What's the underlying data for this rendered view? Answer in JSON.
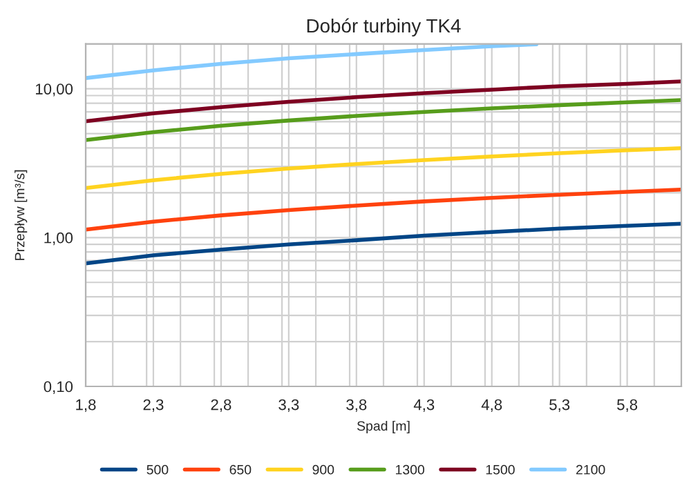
{
  "chart_data": {
    "type": "line",
    "title": "Dobór turbiny TK4",
    "xlabel": "Spad [m]",
    "ylabel": "Przepływ [m³/s]",
    "x": [
      1.8,
      2.3,
      2.8,
      3.3,
      3.8,
      4.3,
      4.8,
      5.3,
      5.8,
      6.2
    ],
    "series": [
      {
        "name": "500",
        "color": "#004586",
        "values": [
          0.67,
          0.76,
          0.83,
          0.9,
          0.96,
          1.03,
          1.09,
          1.15,
          1.2,
          1.24
        ]
      },
      {
        "name": "650",
        "color": "#ff420e",
        "values": [
          1.13,
          1.28,
          1.41,
          1.53,
          1.64,
          1.75,
          1.85,
          1.94,
          2.03,
          2.1
        ]
      },
      {
        "name": "900",
        "color": "#ffd320",
        "values": [
          2.15,
          2.43,
          2.68,
          2.91,
          3.12,
          3.32,
          3.51,
          3.69,
          3.86,
          3.99
        ]
      },
      {
        "name": "1300",
        "color": "#579d1c",
        "values": [
          4.52,
          5.11,
          5.64,
          6.12,
          6.57,
          6.99,
          7.38,
          7.76,
          8.11,
          8.39
        ]
      },
      {
        "name": "1500",
        "color": "#7e0021",
        "values": [
          6.04,
          6.83,
          7.53,
          8.18,
          8.78,
          9.34,
          9.86,
          10.4,
          10.8,
          11.2
        ]
      },
      {
        "name": "2100",
        "color": "#83caff",
        "x": [
          1.8,
          2.3,
          2.8,
          3.3,
          3.8,
          4.3,
          4.8,
          5.13
        ],
        "values": [
          11.8,
          13.3,
          14.7,
          16.0,
          17.1,
          18.2,
          19.3,
          19.9
        ]
      }
    ],
    "log": "y",
    "xlim": [
      1.8,
      6.2
    ],
    "ylim": [
      0.1,
      20
    ],
    "xticks": [
      {
        "value": 1.8,
        "label": "1,8"
      },
      {
        "value": 2.3,
        "label": "2,3"
      },
      {
        "value": 2.8,
        "label": "2,8"
      },
      {
        "value": 3.3,
        "label": "3,3"
      },
      {
        "value": 3.8,
        "label": "3,8"
      },
      {
        "value": 4.3,
        "label": "4,3"
      },
      {
        "value": 4.8,
        "label": "4,8"
      },
      {
        "value": 5.3,
        "label": "5,3"
      },
      {
        "value": 5.8,
        "label": "5,8"
      }
    ],
    "yticks": [
      {
        "value": 0.1,
        "label": "0,10"
      },
      {
        "value": 1,
        "label": "1,00"
      },
      {
        "value": 10,
        "label": "10,00"
      }
    ],
    "grid": true,
    "legend": "bottom",
    "marker": "none",
    "line_style": "solid"
  }
}
